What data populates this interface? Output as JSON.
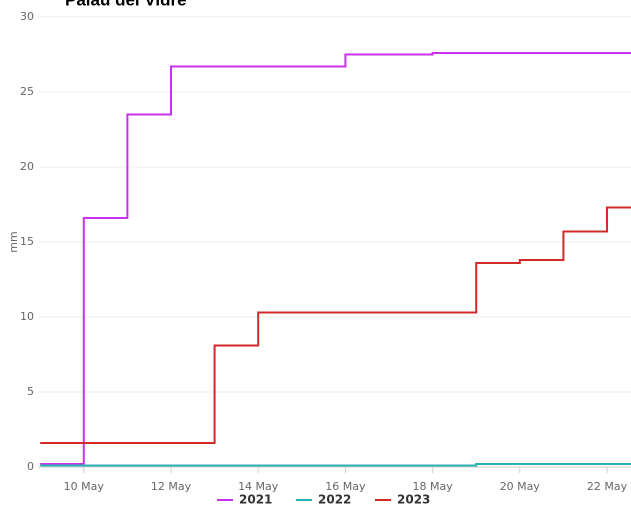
{
  "chart_data": {
    "type": "line",
    "step": "after",
    "title": "Palau del Vidre",
    "y_label": "mm",
    "x": [
      9,
      10,
      11,
      12,
      13,
      14,
      15,
      16,
      17,
      18,
      19,
      20,
      21,
      22
    ],
    "series": [
      {
        "name": "2021",
        "color": "#c832ea",
        "values": [
          0.2,
          16.6,
          23.5,
          26.7,
          26.7,
          26.7,
          26.7,
          27.5,
          27.5,
          27.6,
          27.6,
          27.6,
          27.6,
          27.6
        ]
      },
      {
        "name": "2022",
        "color": "#2ab3b3",
        "values": [
          0.1,
          0.1,
          0.1,
          0.1,
          0.1,
          0.1,
          0.1,
          0.1,
          0.1,
          0.1,
          0.2,
          0.2,
          0.2,
          0.2
        ]
      },
      {
        "name": "2023",
        "color": "#d22a2a",
        "values": [
          1.6,
          1.6,
          1.6,
          1.6,
          8.1,
          10.3,
          10.3,
          10.3,
          10.3,
          10.3,
          13.6,
          13.8,
          15.7,
          17.3
        ]
      }
    ],
    "xlim": [
      8.95,
      22.55
    ],
    "xticks": [
      {
        "value": 10,
        "label": "10 May"
      },
      {
        "value": 12,
        "label": "12 May"
      },
      {
        "value": 14,
        "label": "14 May"
      },
      {
        "value": 16,
        "label": "16 May"
      },
      {
        "value": 18,
        "label": "18 May"
      },
      {
        "value": 20,
        "label": "20 May"
      },
      {
        "value": 22,
        "label": "22 May"
      }
    ],
    "ylim": [
      0,
      30
    ],
    "yticks": [
      0,
      5,
      10,
      15,
      20,
      25,
      30
    ],
    "grid": true,
    "legend": "bottom"
  }
}
